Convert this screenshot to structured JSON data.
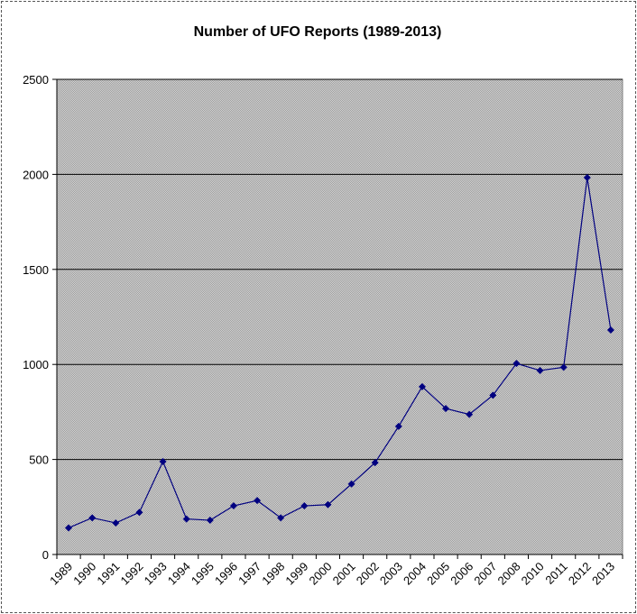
{
  "chart_data": {
    "type": "line",
    "title": "Number of UFO Reports (1989-2013)",
    "xlabel": "",
    "ylabel": "",
    "categories": [
      "1989",
      "1990",
      "1991",
      "1992",
      "1993",
      "1994",
      "1995",
      "1996",
      "1997",
      "1998",
      "1999",
      "2000",
      "2001",
      "2002",
      "2003",
      "2004",
      "2005",
      "2006",
      "2007",
      "2008",
      "2010",
      "2011",
      "2012",
      "2013"
    ],
    "series": [
      {
        "values": [
          140,
          193,
          166,
          222,
          489,
          187,
          180,
          256,
          284,
          193,
          256,
          262,
          371,
          483,
          674,
          883,
          768,
          737,
          838,
          1005,
          968,
          985,
          1983,
          1181
        ]
      }
    ],
    "ylim": [
      0,
      2500
    ],
    "yticks": [
      0,
      500,
      1000,
      1500,
      2000,
      2500
    ],
    "grid": true,
    "legend": "none",
    "colors": {
      "line": "#000080",
      "marker": "#000080",
      "plot_bg": "#c0c0c0",
      "gridline": "#000000"
    }
  }
}
